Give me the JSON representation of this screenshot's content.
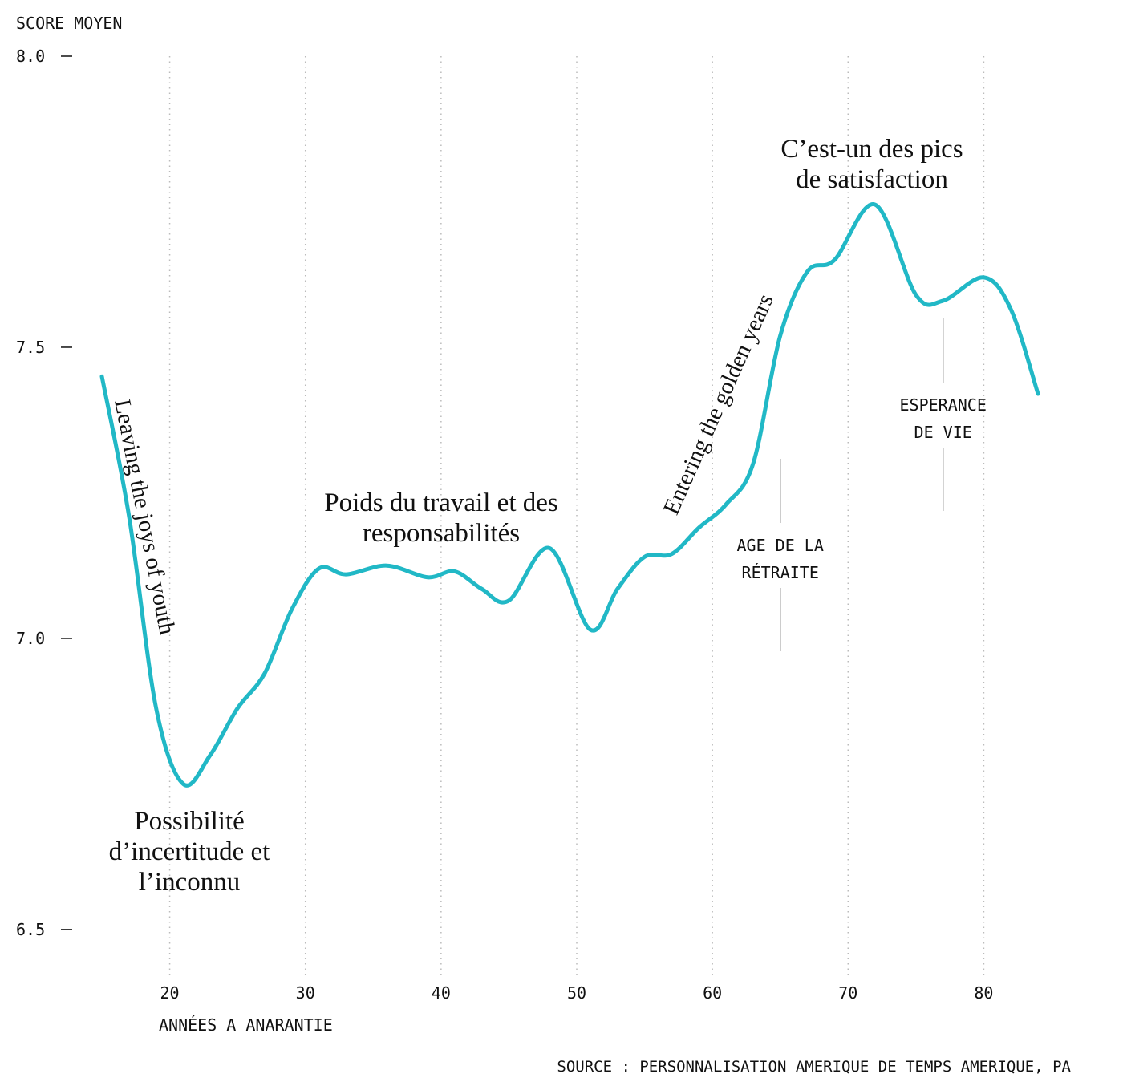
{
  "chart_data": {
    "type": "line",
    "y_axis_label": "SCORE MOYEN",
    "x_axis_label": "ANNÉES A ANARANTIE",
    "source": "SOURCE : PERSONNALISATION AMERIQUE DE TEMPS AMERIQUE, PA",
    "x": [
      15,
      17,
      19,
      21,
      23,
      25,
      27,
      29,
      31,
      33,
      36,
      39,
      41,
      43,
      45,
      48,
      51,
      53,
      55,
      57,
      59,
      61,
      63,
      65,
      67,
      69,
      72,
      75,
      77,
      80,
      82,
      84
    ],
    "series": [
      {
        "color": "#21b8c6",
        "values": [
          7.45,
          7.21,
          6.88,
          6.75,
          6.8,
          6.88,
          6.94,
          7.05,
          7.12,
          7.11,
          7.125,
          7.105,
          7.115,
          7.085,
          7.065,
          7.155,
          7.015,
          7.085,
          7.14,
          7.145,
          7.19,
          7.23,
          7.3,
          7.52,
          7.63,
          7.65,
          7.745,
          7.59,
          7.58,
          7.62,
          7.565,
          7.42
        ]
      }
    ],
    "xlim": [
      15,
      85
    ],
    "ylim": [
      6.42,
      8.0
    ],
    "xticks": [
      20,
      30,
      40,
      50,
      60,
      70,
      80
    ],
    "yticks": [
      {
        "value": 6.5,
        "label": "6.5"
      },
      {
        "value": 7,
        "label": "7.0"
      },
      {
        "value": 7.5,
        "label": "7.5"
      },
      {
        "value": 8,
        "label": "8.0"
      }
    ],
    "grid": true,
    "annotations": [
      {
        "lines": [
          "Possibilité",
          "d’incertitude et",
          "l’inconnu"
        ]
      },
      {
        "lines": [
          "Poids du travail et des",
          "responsabilités"
        ]
      },
      {
        "lines": [
          "C’est-un des pics",
          "de satisfaction"
        ]
      },
      {
        "lines": [
          "Leaving the joys of youth"
        ]
      },
      {
        "lines": [
          "Entering the golden years"
        ]
      }
    ],
    "markers": [
      {
        "x": 65,
        "lines": [
          "AGE DE LA",
          "RÉTRAITE"
        ]
      },
      {
        "x": 77,
        "lines": [
          "ESPERANCE",
          "DE VIE"
        ]
      }
    ]
  }
}
